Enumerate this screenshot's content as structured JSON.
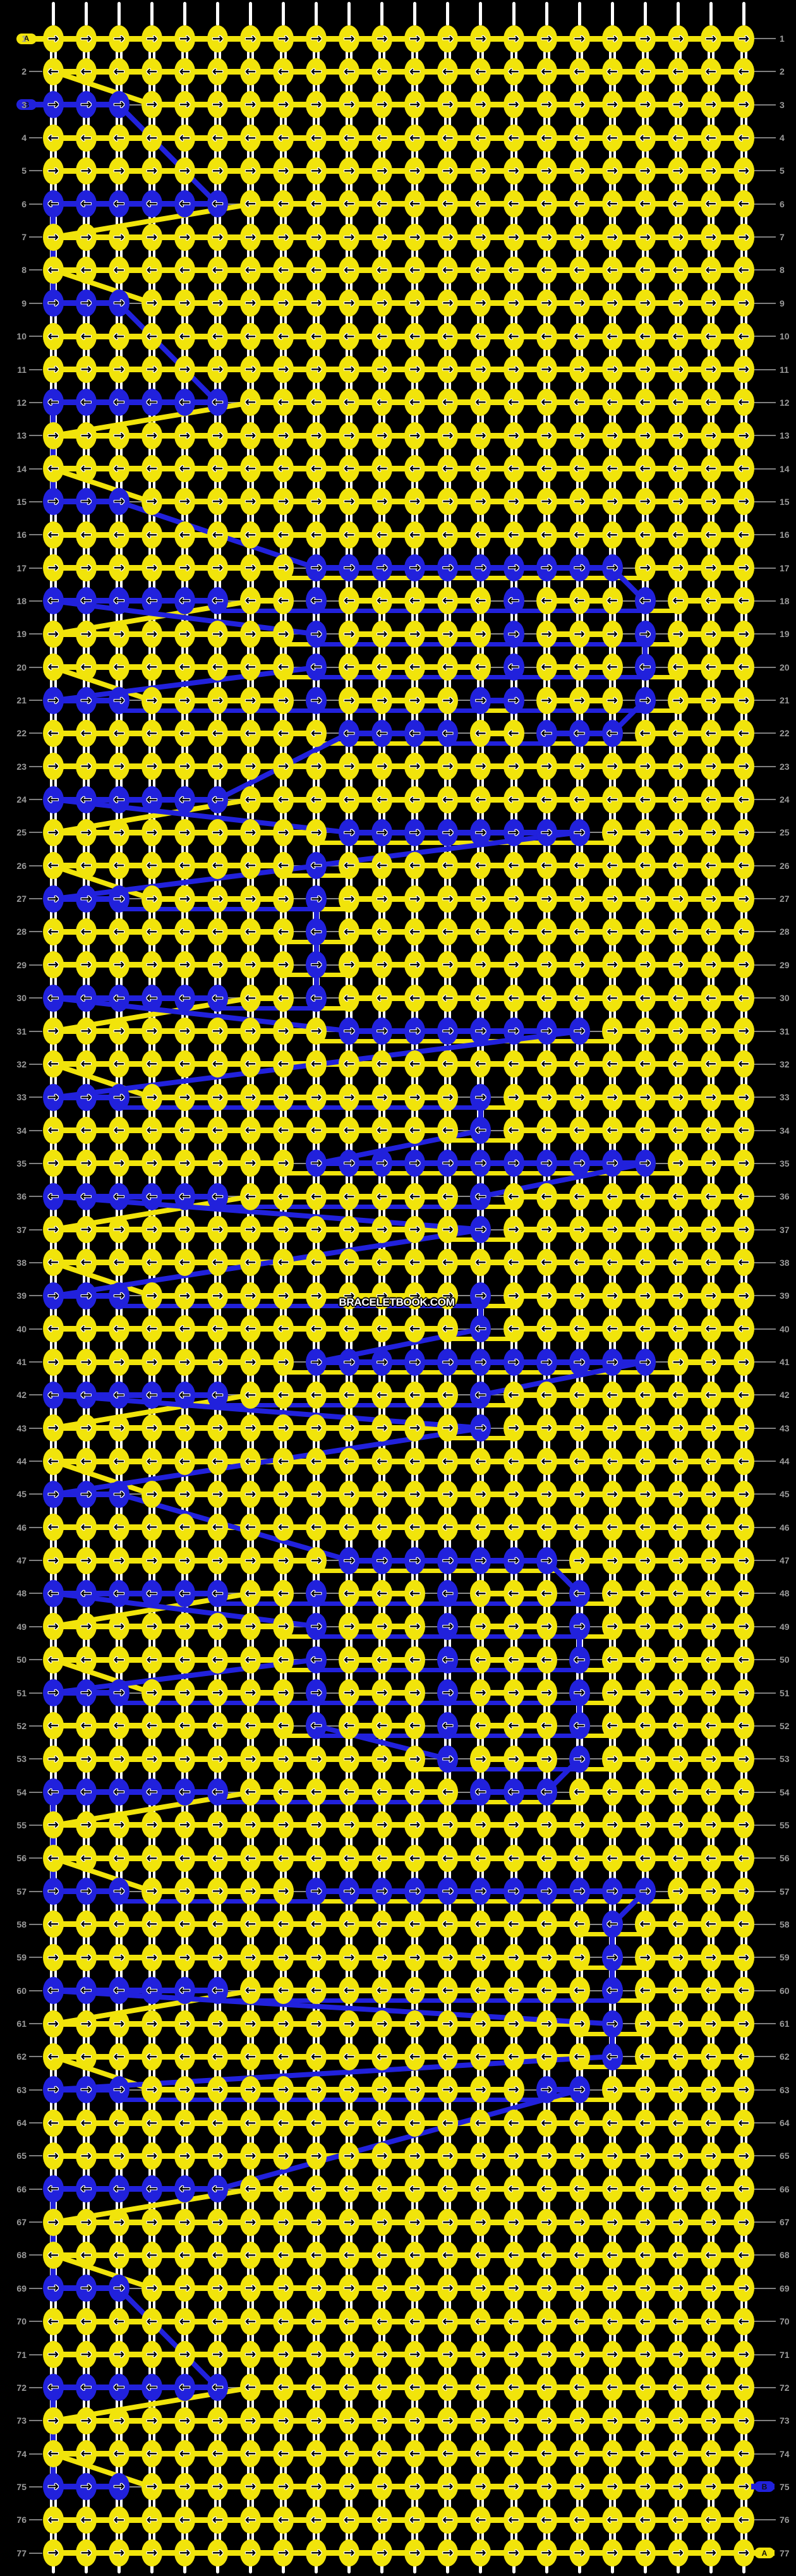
{
  "watermark": "BRACELETBOOK.COM",
  "colors": {
    "yellow": "#F1E40B",
    "blue": "#2121DC",
    "background": "#000000",
    "string_white": "#FFFFFF",
    "number_gray": "#9B9B9B",
    "line_gray": "#7F7F7F",
    "arrow_black": "#000000",
    "arrow_outline": "#FFFFFF"
  },
  "icons": {
    "arrow_right": "→",
    "arrow_left": "←"
  },
  "strings": [
    {
      "label": "A",
      "color": "yellow"
    },
    {
      "label": "B",
      "color": "blue"
    }
  ],
  "badges": [
    {
      "row": 1,
      "side": "left",
      "label": "A",
      "color": "yellow"
    },
    {
      "row": 3,
      "side": "left",
      "label": "B",
      "color": "blue"
    },
    {
      "row": 75,
      "side": "right",
      "label": "B",
      "color": "blue"
    },
    {
      "row": 77,
      "side": "right",
      "label": "A",
      "color": "yellow"
    }
  ],
  "grid": {
    "rows": 77,
    "cols": 22,
    "row_direction_odd": "right",
    "row_direction_even": "left",
    "row_numbers_both_sides": true,
    "cells": [
      "yyyyyyyyyyyyyyyyyyyyyy",
      "yyyyyyyyyyyyyyyyyyyyyy",
      "bbbyyyyyyyyyyyyyyyyyyy",
      "yyyyyyyyyyyyyyyyyyyyyy",
      "yyyyyyyyyyyyyyyyyyyyyy",
      "bbbbbbyyyyyyyyyyyyyyyy",
      "yyyyyyyyyyyyyyyyyyyyyy",
      "yyyyyyyyyyyyyyyyyyyyyy",
      "bbbyyyyyyyyyyyyyyyyyyy",
      "yyyyyyyyyyyyyyyyyyyyyy",
      "yyyyyyyyyyyyyyyyyyyyyy",
      "bbbbbbyyyyyyyyyyyyyyyy",
      "yyyyyyyyyyyyyyyyyyyyyy",
      "yyyyyyyyyyyyyyyyyyyyyy",
      "bbbyyyyyyyyyyyyyyyyyyy",
      "yyyyyyyyyyyyyyyyyyyyyy",
      "yyyyyyyybbbbbbbbbbyyyy",
      "bbbbbbyybyyyyybyyybyyy",
      "yyyyyyyybyyyyybyyybyyy",
      "yyyyyyyybyyyyybyyybyyy",
      "bbbyyyyybyyyybbyyybyyy",
      "yyyyyyyyybbbbyybbbyyyy",
      "yyyyyyyyyyyyyyyyyyyyyy",
      "bbbbbbyyyyyyyyyyyyyyyy",
      "yyyyyyyyybbbbbbbbyyyyy",
      "yyyyyyyybyyyyyyyyyyyyy",
      "bbbyyyyybyyyyyyyyyyyyy",
      "yyyyyyyybyyyyyyyyyyyyy",
      "yyyyyyyybyyyyyyyyyyyyy",
      "bbbbbbyybyyyyyyyyyyyyy",
      "yyyyyyyyybbbbbbbbyyyyy",
      "yyyyyyyyyyyyyyyyyyyyyy",
      "bbbyyyyyyyyyybyyyyyyyy",
      "yyyyyyyyyyyyybyyyyyyyy",
      "yyyyyyyybbbbbbbbbbbyyy",
      "bbbbbbyyyyyyybyyyyyyyy",
      "yyyyyyyyyyyyybyyyyyyyy",
      "yyyyyyyyyyyyyyyyyyyyyy",
      "bbbyyyyyyyyyybyyyyyyyy",
      "yyyyyyyyyyyyybyyyyyyyy",
      "yyyyyyyybbbbbbbbbbbyyy",
      "bbbbbbyyyyyyybyyyyyyyy",
      "yyyyyyyyyyyyybyyyyyyyy",
      "yyyyyyyyyyyyyyyyyyyyyy",
      "bbbyyyyyyyyyyyyyyyyyyy",
      "yyyyyyyyyyyyyyyyyyyyyy",
      "yyyyyyyyybbbbbbbyyyyyy",
      "bbbbbbyybyyybyyybyyyyy",
      "yyyyyyyybyyybyyybyyyyy",
      "yyyyyyyybyyybyyybyyyyy",
      "bbbyyyyybyyybyyybyyyyy",
      "yyyyyyyybyyybyyybyyyyy",
      "yyyyyyyyyyyybyyybyyyyy",
      "bbbbbbyyyyyyybbbyyyyyy",
      "yyyyyyyyyyyyyyyyyyyyyy",
      "yyyyyyyyyyyyyyyyyyyyyy",
      "bbbyyyyybbbbbbbbbbbyyy",
      "yyyyyyyyyyyyyyyyybyyyy",
      "yyyyyyyyyyyyyyyyybyyyy",
      "bbbbbbyyyyyyyyyyybyyyy",
      "yyyyyyyyyyyyyyyyybyyyy",
      "yyyyyyyyyyyyyyyyybyyyy",
      "bbbyyyyyyyyyyyybbyyyyy",
      "yyyyyyyyyyyyyyyyyyyyyy",
      "yyyyyyyyyyyyyyyyyyyyyy",
      "bbbbbbyyyyyyyyyyyyyyyy",
      "yyyyyyyyyyyyyyyyyyyyyy",
      "yyyyyyyyyyyyyyyyyyyyyy",
      "bbbyyyyyyyyyyyyyyyyyyy",
      "yyyyyyyyyyyyyyyyyyyyyy",
      "yyyyyyyyyyyyyyyyyyyyyy",
      "bbbbbbyyyyyyyyyyyyyyyy",
      "yyyyyyyyyyyyyyyyyyyyyy",
      "yyyyyyyyyyyyyyyyyyyyyy",
      "bbbyyyyyyyyyyyyyyyyyyy",
      "yyyyyyyyyyyyyyyyyyyyyy",
      "yyyyyyyyyyyyyyyyyyyyyy"
    ]
  }
}
